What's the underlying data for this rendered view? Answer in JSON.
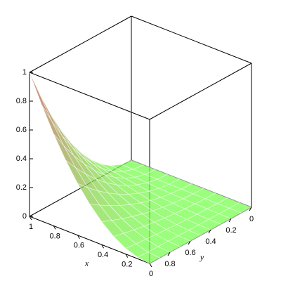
{
  "chart_data": {
    "type": "surface",
    "xlabel": "x",
    "ylabel": "y",
    "x": [
      0,
      0.1,
      0.2,
      0.3,
      0.4,
      0.5,
      0.6,
      0.7,
      0.8,
      0.9,
      1
    ],
    "y": [
      0,
      0.1,
      0.2,
      0.3,
      0.4,
      0.5,
      0.6,
      0.7,
      0.8,
      0.9,
      1
    ],
    "z": [
      [
        0,
        0,
        0,
        0,
        0,
        0,
        0,
        0,
        0,
        0,
        0
      ],
      [
        0,
        0.0001,
        0.0004,
        0.0009,
        0.0016,
        0.0025,
        0.0036,
        0.0049,
        0.0064,
        0.0081,
        0.01
      ],
      [
        0,
        0.0004,
        0.0016,
        0.0036,
        0.0064,
        0.01,
        0.0144,
        0.0196,
        0.0256,
        0.0324,
        0.04
      ],
      [
        0,
        0.0009,
        0.0036,
        0.0081,
        0.0144,
        0.0225,
        0.0324,
        0.0441,
        0.0576,
        0.0729,
        0.09
      ],
      [
        0,
        0.0016,
        0.0064,
        0.0144,
        0.0256,
        0.04,
        0.0576,
        0.0784,
        0.1024,
        0.1296,
        0.16
      ],
      [
        0,
        0.0025,
        0.01,
        0.0225,
        0.04,
        0.0625,
        0.09,
        0.1225,
        0.16,
        0.2025,
        0.25
      ],
      [
        0,
        0.0036,
        0.0144,
        0.0324,
        0.0576,
        0.09,
        0.1296,
        0.1764,
        0.2304,
        0.2916,
        0.36
      ],
      [
        0,
        0.0049,
        0.0196,
        0.0441,
        0.0784,
        0.1225,
        0.1764,
        0.2401,
        0.3136,
        0.3969,
        0.49
      ],
      [
        0,
        0.0064,
        0.0256,
        0.0576,
        0.1024,
        0.16,
        0.2304,
        0.3136,
        0.4096,
        0.5184,
        0.64
      ],
      [
        0,
        0.0081,
        0.0324,
        0.0729,
        0.1296,
        0.2025,
        0.2916,
        0.3969,
        0.5184,
        0.6561,
        0.81
      ],
      [
        0,
        0.01,
        0.04,
        0.09,
        0.16,
        0.25,
        0.36,
        0.49,
        0.64,
        0.81,
        1
      ]
    ],
    "xlim": [
      0,
      1
    ],
    "ylim": [
      0,
      1
    ],
    "zlim": [
      0,
      1
    ],
    "xticks": [
      0,
      0.2,
      0.4,
      0.6,
      0.8,
      1
    ],
    "yticks": [
      0,
      0.2,
      0.4,
      0.6,
      0.8
    ],
    "zticks": [
      0,
      0.2,
      0.4,
      0.6,
      0.8,
      1
    ],
    "low_color": "#78ff50",
    "high_color": "#c85050"
  }
}
